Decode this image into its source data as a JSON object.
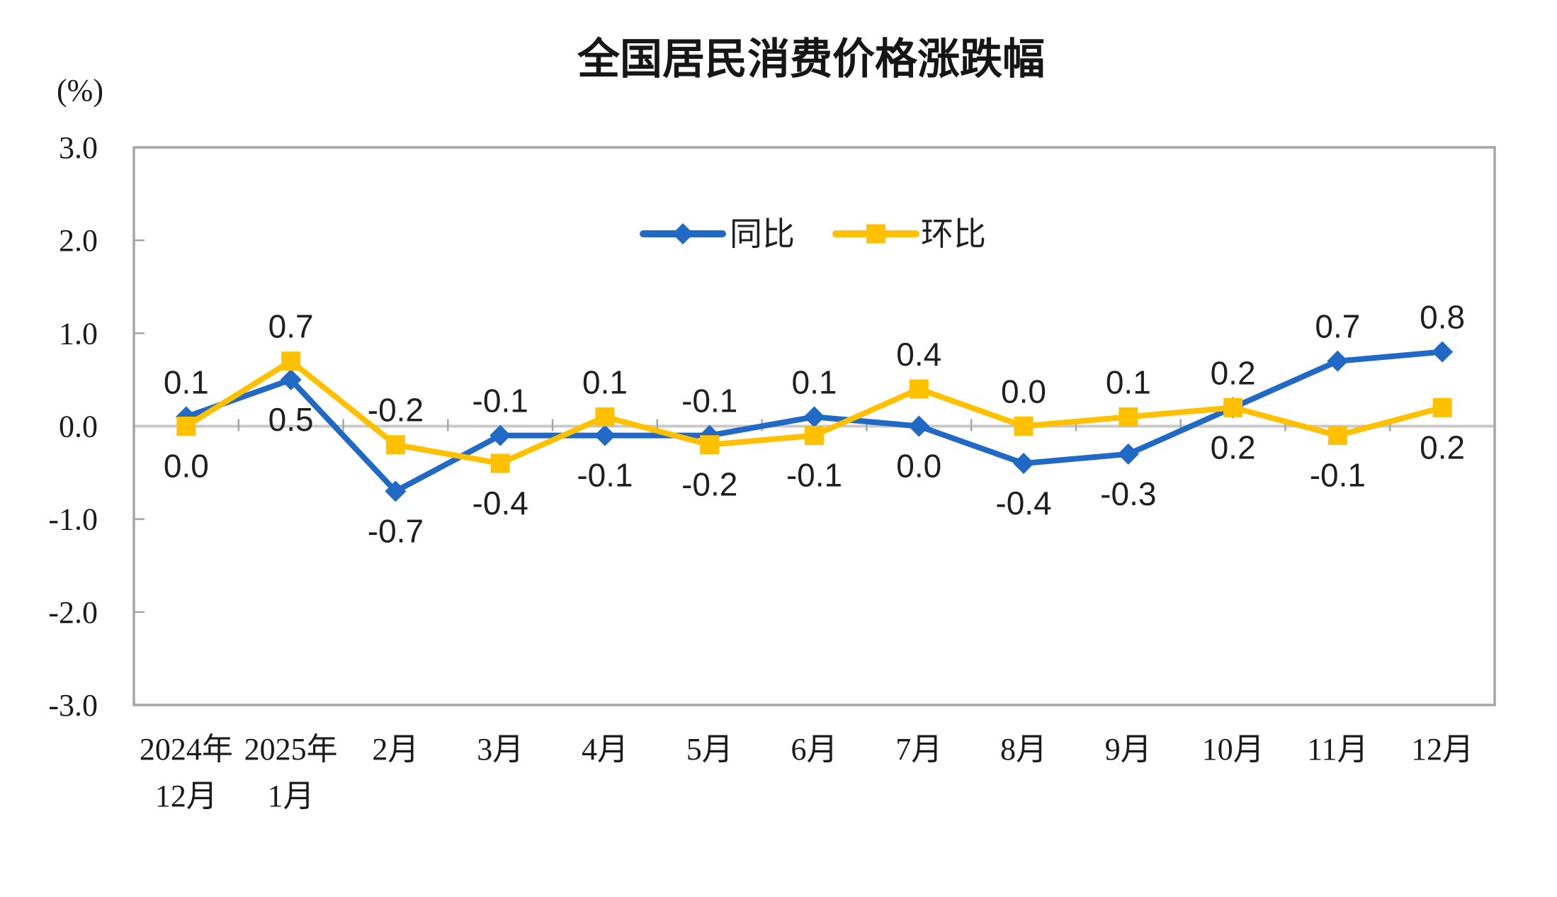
{
  "title": "全国居民消费价格涨跌幅",
  "y_axis_unit": "(%)",
  "chart_data": {
    "type": "line",
    "title": "全国居民消费价格涨跌幅",
    "ylabel": "(%)",
    "ylim": [
      -3.0,
      3.0
    ],
    "ytick_step": 1.0,
    "ytick_labels": [
      "3.0",
      "2.0",
      "1.0",
      "0.0",
      "-1.0",
      "-2.0",
      "-3.0"
    ],
    "grid": false,
    "zero_line": true,
    "legend_position": "top-center-inside",
    "categories": [
      [
        "2024年",
        "12月"
      ],
      [
        "2025年",
        "1月"
      ],
      [
        "2月"
      ],
      [
        "3月"
      ],
      [
        "4月"
      ],
      [
        "5月"
      ],
      [
        "6月"
      ],
      [
        "7月"
      ],
      [
        "8月"
      ],
      [
        "9月"
      ],
      [
        "10月"
      ],
      [
        "11月"
      ],
      [
        "12月"
      ]
    ],
    "series": [
      {
        "key": "yoy",
        "name": "同比",
        "marker": "diamond",
        "color": "#2069C4",
        "values": [
          0.1,
          0.5,
          -0.7,
          -0.1,
          -0.1,
          -0.1,
          0.1,
          0.0,
          -0.4,
          -0.3,
          0.2,
          0.7,
          0.8
        ]
      },
      {
        "key": "mom",
        "name": "环比",
        "marker": "square",
        "color": "#FFC000",
        "values": [
          0.0,
          0.7,
          -0.2,
          -0.4,
          0.1,
          -0.2,
          -0.1,
          0.4,
          0.0,
          0.1,
          0.2,
          -0.1,
          0.2
        ]
      }
    ],
    "colors": {
      "plot_border": "#A6A6A6",
      "zero_line": "#C9C9C9",
      "tick": "#A6A6A6",
      "text": "#1A1A1A"
    }
  }
}
